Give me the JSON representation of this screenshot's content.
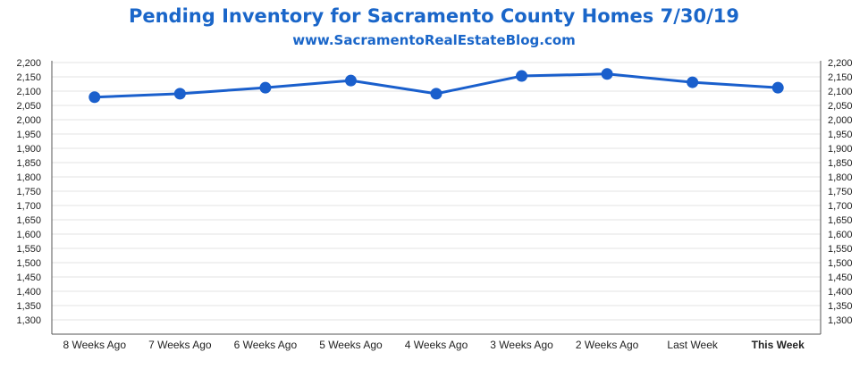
{
  "chart_data": {
    "type": "line",
    "title": "Pending Inventory for Sacramento County Homes 7/30/19",
    "subtitle": "www.SacramentoRealEstateBlog.com",
    "categories": [
      "8 Weeks Ago",
      "7 Weeks Ago",
      "6 Weeks Ago",
      "5 Weeks Ago",
      "4 Weeks Ago",
      "3 Weeks Ago",
      "2 Weeks Ago",
      "Last Week",
      "This Week"
    ],
    "highlight_category": "This Week",
    "series": [
      {
        "values": [
          2079,
          2091,
          2112,
          2137,
          2091,
          2153,
          2160,
          2131,
          2112
        ]
      }
    ],
    "ylim": [
      1250,
      2200
    ],
    "yticks": [
      1300,
      1350,
      1400,
      1450,
      1500,
      1550,
      1600,
      1650,
      1700,
      1750,
      1800,
      1850,
      1900,
      1950,
      2000,
      2050,
      2100,
      2150,
      2200
    ],
    "secondary_y_axis": true,
    "grid": true,
    "colors": {
      "line": "#1a5fcc",
      "title": "#1a66c9",
      "highlight_label": "#1a66c9",
      "grid": "#e3e3e3"
    }
  }
}
